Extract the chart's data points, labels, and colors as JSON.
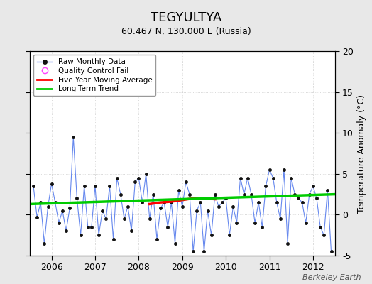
{
  "title": "TEGYULTYA",
  "subtitle": "60.467 N, 130.000 E (Russia)",
  "ylabel": "Temperature Anomaly (°C)",
  "watermark": "Berkeley Earth",
  "xlim": [
    2005.5,
    2012.5
  ],
  "ylim": [
    -5,
    20
  ],
  "yticks": [
    -5,
    0,
    5,
    10,
    15,
    20
  ],
  "bg_color": "#e8e8e8",
  "plot_bg_color": "#ffffff",
  "raw_line_color": "#6688ee",
  "raw_marker_color": "#111111",
  "moving_avg_color": "#ff0000",
  "trend_color": "#00cc00",
  "raw_monthly_x": [
    2005.583,
    2005.667,
    2005.75,
    2005.833,
    2005.917,
    2006.0,
    2006.083,
    2006.167,
    2006.25,
    2006.333,
    2006.417,
    2006.5,
    2006.583,
    2006.667,
    2006.75,
    2006.833,
    2006.917,
    2007.0,
    2007.083,
    2007.167,
    2007.25,
    2007.333,
    2007.417,
    2007.5,
    2007.583,
    2007.667,
    2007.75,
    2007.833,
    2007.917,
    2008.0,
    2008.083,
    2008.167,
    2008.25,
    2008.333,
    2008.417,
    2008.5,
    2008.583,
    2008.667,
    2008.75,
    2008.833,
    2008.917,
    2009.0,
    2009.083,
    2009.167,
    2009.25,
    2009.333,
    2009.417,
    2009.5,
    2009.583,
    2009.667,
    2009.75,
    2009.833,
    2009.917,
    2010.0,
    2010.083,
    2010.167,
    2010.25,
    2010.333,
    2010.417,
    2010.5,
    2010.583,
    2010.667,
    2010.75,
    2010.833,
    2010.917,
    2011.0,
    2011.083,
    2011.167,
    2011.25,
    2011.333,
    2011.417,
    2011.5,
    2011.583,
    2011.667,
    2011.75,
    2011.833,
    2011.917,
    2012.0,
    2012.083,
    2012.167,
    2012.25,
    2012.333,
    2012.417
  ],
  "raw_monthly_y": [
    3.5,
    -0.3,
    1.5,
    -3.5,
    1.0,
    3.8,
    1.5,
    -1.0,
    0.5,
    -2.0,
    0.8,
    9.5,
    2.0,
    -2.5,
    3.5,
    -1.5,
    -1.5,
    3.5,
    -2.5,
    0.5,
    -0.5,
    3.5,
    -3.0,
    4.5,
    2.5,
    -0.5,
    1.0,
    -2.0,
    4.0,
    4.5,
    1.5,
    5.0,
    -0.5,
    2.5,
    -3.0,
    0.8,
    1.5,
    -1.5,
    1.5,
    -3.5,
    3.0,
    1.0,
    4.0,
    2.5,
    -4.5,
    0.5,
    1.5,
    -4.5,
    0.5,
    -2.5,
    2.5,
    1.0,
    1.5,
    2.0,
    -2.5,
    1.0,
    -1.0,
    4.5,
    2.5,
    4.5,
    2.5,
    -1.0,
    1.5,
    -1.5,
    3.5,
    5.5,
    4.5,
    1.5,
    -0.5,
    5.5,
    -3.5,
    4.5,
    2.5,
    2.0,
    1.5,
    -1.0,
    2.5,
    3.5,
    2.0,
    -1.5,
    -2.5,
    3.0,
    -4.5
  ],
  "moving_avg_x": [
    2008.25,
    2008.5,
    2008.75,
    2009.0,
    2009.25,
    2009.5,
    2009.75
  ],
  "moving_avg_y": [
    1.3,
    1.5,
    1.6,
    1.8,
    2.0,
    2.0,
    1.9
  ],
  "trend_x": [
    2005.5,
    2012.5
  ],
  "trend_y": [
    1.3,
    2.5
  ],
  "xticks": [
    2006,
    2007,
    2008,
    2009,
    2010,
    2011,
    2012
  ],
  "xtick_labels": [
    "2006",
    "2007",
    "2008",
    "2009",
    "2010",
    "2011",
    "2012"
  ]
}
